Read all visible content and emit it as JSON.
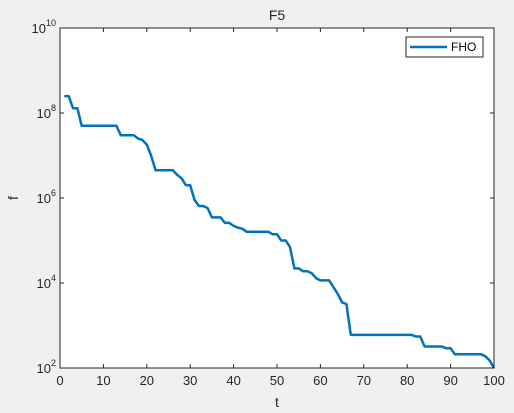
{
  "chart_data": {
    "type": "line",
    "title": "F5",
    "xlabel": "t",
    "ylabel": "f",
    "xlim": [
      0,
      100
    ],
    "ylim": [
      100,
      10000000000
    ],
    "yscale": "log",
    "grid": false,
    "legend_position": "top-right",
    "x_ticks": [
      "0",
      "10",
      "20",
      "30",
      "40",
      "50",
      "60",
      "70",
      "80",
      "90",
      "100"
    ],
    "y_ticks": [
      {
        "base": "10",
        "exp": "2",
        "value": 100
      },
      {
        "base": "10",
        "exp": "4",
        "value": 10000
      },
      {
        "base": "10",
        "exp": "6",
        "value": 1000000
      },
      {
        "base": "10",
        "exp": "8",
        "value": 100000000
      },
      {
        "base": "10",
        "exp": "10",
        "value": 10000000000
      }
    ],
    "series": [
      {
        "name": "FHO",
        "color": "#0072bd",
        "x": [
          1,
          2,
          3,
          4,
          5,
          6,
          13,
          14,
          17,
          18,
          19,
          20,
          21,
          22,
          23,
          26,
          27,
          28,
          29,
          30,
          31,
          32,
          33,
          34,
          35,
          36,
          37,
          38,
          39,
          40,
          41,
          42,
          43,
          44,
          45,
          46,
          47,
          48,
          49,
          50,
          51,
          52,
          53,
          54,
          55,
          56,
          57,
          58,
          59,
          60,
          61,
          62,
          63,
          64,
          65,
          66,
          67,
          68,
          69,
          81,
          82,
          83,
          84,
          88,
          89,
          90,
          91,
          97,
          98,
          99,
          100
        ],
        "y": [
          250000000.0,
          250000000.0,
          130000000.0,
          130000000.0,
          50000000.0,
          50000000.0,
          50000000.0,
          30000000.0,
          30000000.0,
          25000000.0,
          23000000.0,
          18000000.0,
          10000000.0,
          4500000.0,
          4500000.0,
          4500000.0,
          3500000.0,
          2900000.0,
          2000000.0,
          2000000.0,
          900000.0,
          650000.0,
          650000.0,
          580000.0,
          350000.0,
          350000.0,
          350000.0,
          260000.0,
          260000.0,
          220000.0,
          200000.0,
          190000.0,
          160000.0,
          160000.0,
          160000.0,
          160000.0,
          160000.0,
          160000.0,
          140000.0,
          140000.0,
          100000.0,
          100000.0,
          70000.0,
          22000.0,
          22000.0,
          19000.0,
          19000.0,
          17000.0,
          13000.0,
          11500.0,
          11500.0,
          11500.0,
          8000,
          5500,
          3500,
          3200,
          600,
          600,
          600,
          600,
          550,
          550,
          320,
          320,
          290,
          290,
          210,
          210,
          190,
          150,
          100
        ]
      }
    ]
  }
}
